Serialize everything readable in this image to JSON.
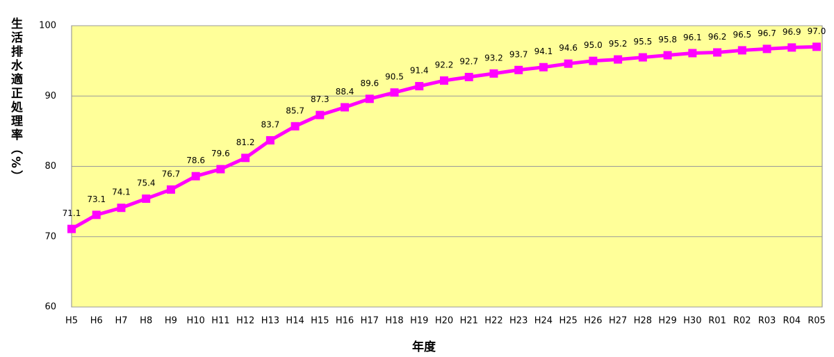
{
  "chart_data": {
    "type": "line",
    "y_label": "生活排水適正処理率（%）",
    "x_label": "年度",
    "categories": [
      "H5",
      "H6",
      "H7",
      "H8",
      "H9",
      "H10",
      "H11",
      "H12",
      "H13",
      "H14",
      "H15",
      "H16",
      "H17",
      "H18",
      "H19",
      "H20",
      "H21",
      "H22",
      "H23",
      "H24",
      "H25",
      "H26",
      "H27",
      "H28",
      "H29",
      "H30",
      "R01",
      "R02",
      "R03",
      "R04",
      "R05"
    ],
    "series": [
      {
        "color": "#ff00ff",
        "values": [
          71.1,
          73.1,
          74.1,
          75.4,
          76.7,
          78.6,
          79.6,
          81.2,
          83.7,
          85.7,
          87.3,
          88.4,
          89.6,
          90.5,
          91.4,
          92.2,
          92.7,
          93.2,
          93.7,
          94.1,
          94.6,
          95.0,
          95.2,
          95.5,
          95.8,
          96.1,
          96.2,
          96.5,
          96.7,
          96.9,
          97.0
        ],
        "value_labels": [
          "71.1",
          "73.1",
          "74.1",
          "75.4",
          "76.7",
          "78.6",
          "79.6",
          "81.2",
          "83.7",
          "85.7",
          "87.3",
          "88.4",
          "89.6",
          "90.5",
          "91.4",
          "92.2",
          "92.7",
          "93.2",
          "93.7",
          "94.1",
          "94.6",
          "95.0",
          "95.2",
          "95.5",
          "95.8",
          "96.1",
          "96.2",
          "96.5",
          "96.7",
          "96.9",
          "97.0"
        ]
      }
    ],
    "ylim": [
      60,
      100
    ],
    "yticks": [
      60,
      70,
      80,
      90,
      100
    ],
    "grid": true,
    "plot_background": "#ffff99"
  }
}
